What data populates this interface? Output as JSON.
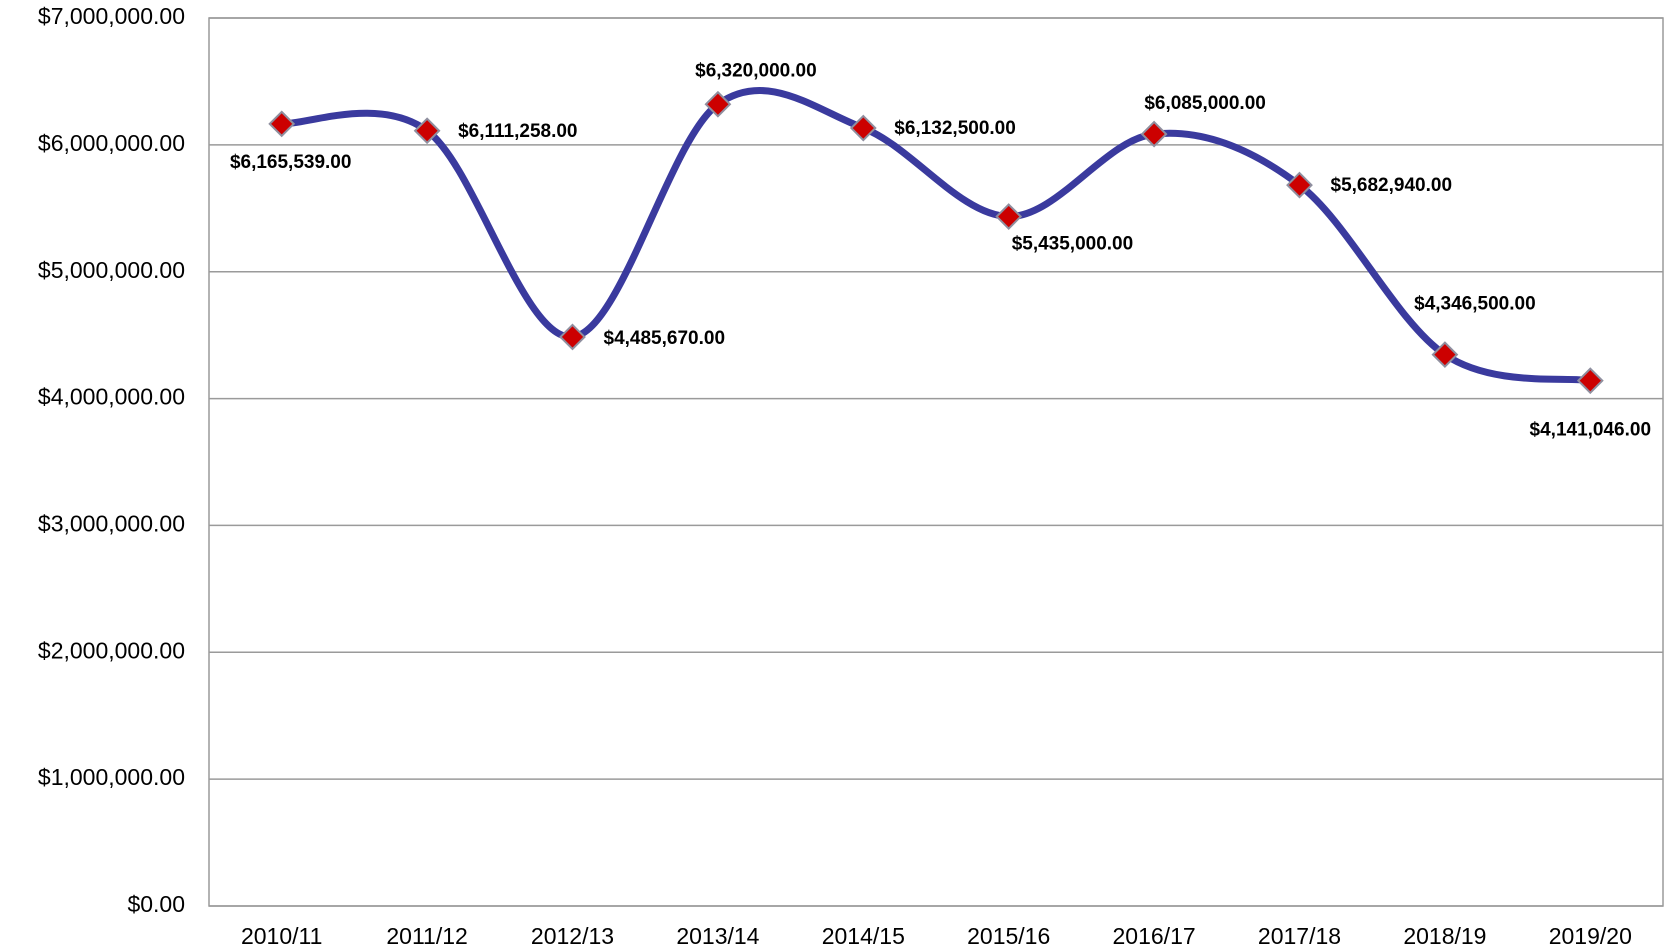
{
  "chart_data": {
    "type": "line",
    "categories": [
      "2010/11",
      "2011/12",
      "2012/13",
      "2013/14",
      "2014/15",
      "2015/16",
      "2016/17",
      "2017/18",
      "2018/19",
      "2019/20"
    ],
    "series": [
      {
        "color": "#3a3a9e",
        "marker_color": "#cc0000",
        "values": [
          6165539,
          6111258,
          4485670,
          6320000,
          6132500,
          5435000,
          6085000,
          5682940,
          4346500,
          4141046
        ],
        "value_labels": [
          "$6,165,539.00",
          "$6,111,258.00",
          "$4,485,670.00",
          "$6,320,000.00",
          "$6,132,500.00",
          "$5,435,000.00",
          "$6,085,000.00",
          "$5,682,940.00",
          "$4,346,500.00",
          "$4,141,046.00"
        ]
      }
    ],
    "ylim": [
      0,
      7000000
    ],
    "yticks": [
      {
        "value": 0,
        "label": "$0.00"
      },
      {
        "value": 1000000,
        "label": "$1,000,000.00"
      },
      {
        "value": 2000000,
        "label": "$2,000,000.00"
      },
      {
        "value": 3000000,
        "label": "$3,000,000.00"
      },
      {
        "value": 4000000,
        "label": "$4,000,000.00"
      },
      {
        "value": 5000000,
        "label": "$5,000,000.00"
      },
      {
        "value": 6000000,
        "label": "$6,000,000.00"
      },
      {
        "value": 7000000,
        "label": "$7,000,000.00"
      }
    ],
    "grid": true,
    "smooth": true
  }
}
